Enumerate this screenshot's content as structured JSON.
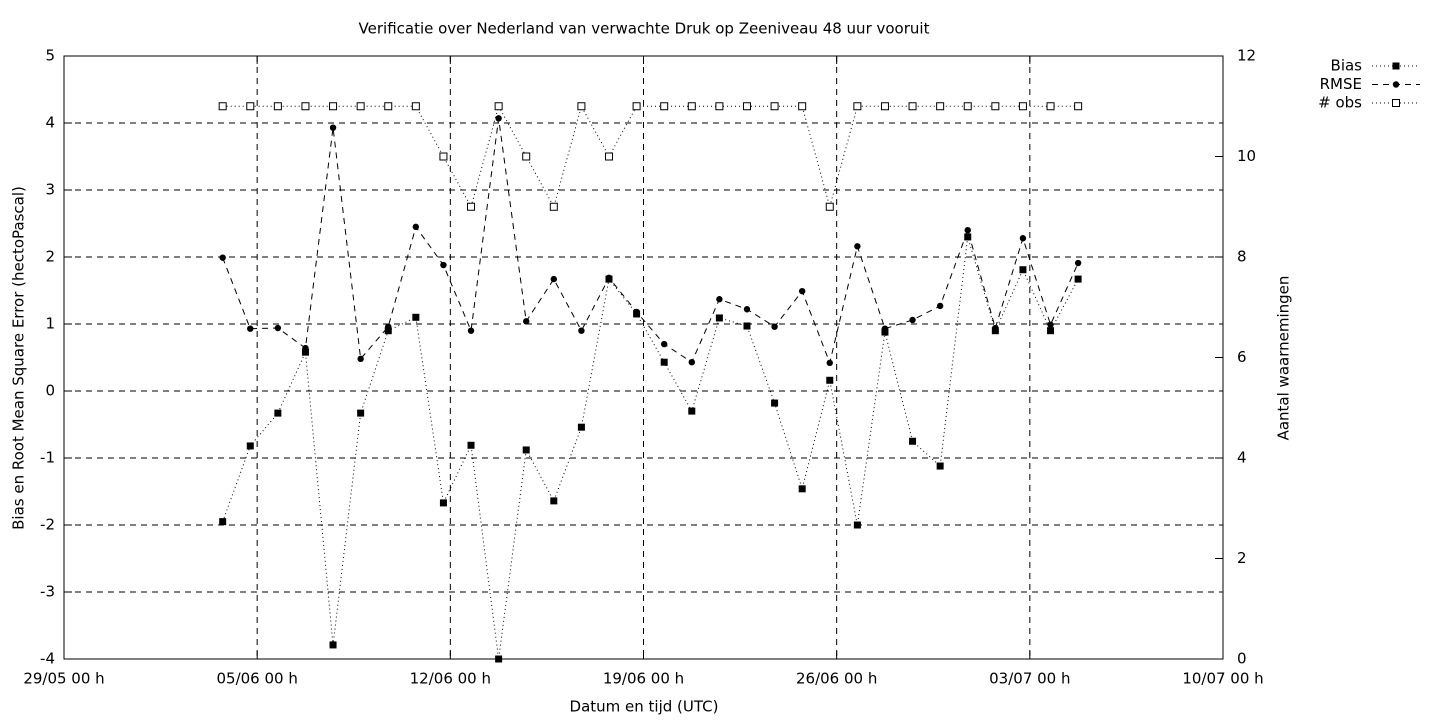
{
  "chart_data": {
    "type": "line",
    "title": "Verificatie over Nederland van verwachte Druk op Zeeniveau 48 uur vooruit",
    "x_label": "Datum en tijd (UTC)",
    "y_label": "Bias en Root Mean Square Error (hectoPascal)",
    "y2_label": "Aantal waarnemingen",
    "x": [
      5.75,
      6.75,
      7.75,
      8.75,
      9.75,
      10.75,
      11.75,
      12.75,
      13.75,
      14.75,
      15.75,
      16.75,
      17.75,
      18.75,
      19.75,
      20.75,
      21.75,
      22.75,
      23.75,
      24.75,
      25.75,
      26.75,
      27.75,
      28.75,
      29.75,
      30.75,
      31.75,
      32.75,
      33.75,
      34.75,
      35.75,
      36.75
    ],
    "xlim": [
      0,
      42
    ],
    "xticks": [
      {
        "value": 0,
        "label": "29/05 00 h"
      },
      {
        "value": 7,
        "label": "05/06 00 h"
      },
      {
        "value": 14,
        "label": "12/06 00 h"
      },
      {
        "value": 21,
        "label": "19/06 00 h"
      },
      {
        "value": 28,
        "label": "26/06 00 h"
      },
      {
        "value": 35,
        "label": "03/07 00 h"
      },
      {
        "value": 42,
        "label": "10/07 00 h"
      }
    ],
    "ylim": [
      -4,
      5
    ],
    "yticks": [
      -4,
      -3,
      -2,
      -1,
      0,
      1,
      2,
      3,
      4,
      5
    ],
    "y2lim": [
      0,
      12
    ],
    "y2ticks": [
      0,
      2,
      4,
      6,
      8,
      10,
      12
    ],
    "grid": true,
    "legend": "top-right",
    "series": [
      {
        "name": "Bias",
        "color": "#000000",
        "marker": "filled-square",
        "dash": "dotted",
        "values": [
          -1.95,
          -0.82,
          -0.33,
          0.58,
          -3.79,
          -0.33,
          0.9,
          1.1,
          -1.67,
          -0.81,
          -4.0,
          -0.88,
          -1.64,
          -0.54,
          1.67,
          1.15,
          0.43,
          -0.3,
          1.09,
          0.97,
          -0.18,
          -1.46,
          0.16,
          -2.0,
          0.88,
          -0.75,
          -1.12,
          2.3,
          0.9,
          1.81,
          0.9,
          1.67
        ]
      },
      {
        "name": "RMSE",
        "color": "#000000",
        "marker": "filled-circle",
        "dash": "dashed",
        "values": [
          1.99,
          0.93,
          0.94,
          0.64,
          3.93,
          0.48,
          0.96,
          2.45,
          1.88,
          0.9,
          4.07,
          1.04,
          1.67,
          0.9,
          1.69,
          1.18,
          0.7,
          0.43,
          1.37,
          1.22,
          0.96,
          1.49,
          0.42,
          2.16,
          0.93,
          1.06,
          1.27,
          2.4,
          0.94,
          2.28,
          0.99,
          1.91
        ]
      },
      {
        "name": "# obs",
        "color": "#000000",
        "marker": "open-square",
        "dash": "dotted",
        "axis": "y2",
        "values": [
          11,
          11,
          11,
          11,
          11,
          11,
          11,
          11,
          10,
          9,
          11,
          10,
          9,
          11,
          10,
          11,
          11,
          11,
          11,
          11,
          11,
          11,
          9,
          11,
          11,
          11,
          11,
          11,
          11,
          11,
          11,
          11
        ]
      }
    ]
  }
}
